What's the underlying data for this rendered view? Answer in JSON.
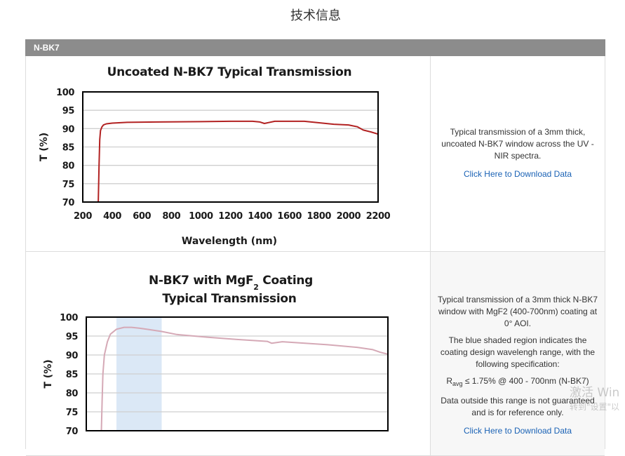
{
  "page": {
    "title": "技术信息"
  },
  "section": {
    "label": "N-BK7"
  },
  "row1": {
    "description": "Typical transmission of a 3mm thick, uncoated N-BK7 window across the UV - NIR spectra.",
    "link": "Click Here to Download Data"
  },
  "row2": {
    "desc1": "Typical transmission of a 3mm thick N-BK7 window with MgF2 (400-700nm) coating at 0° AOI.",
    "desc2": "The blue shaded region indicates the coating design wavelengh range, with the following specification:",
    "spec_prefix": "R",
    "spec_sub": "avg",
    "spec_rest": " ≤ 1.75% @ 400 - 700nm (N-BK7)",
    "desc3": "Data outside this range is not guaranteed and is for reference only.",
    "link": "Click Here to Download Data"
  },
  "watermark": {
    "line1": "激活 Win",
    "line2": "转到\"设置\"以"
  },
  "colors": {
    "line1": "#b22222",
    "line2": "#d5a9b6",
    "band": "#dbe8f6",
    "bar": "#8c8c8c",
    "link": "#1a62b5"
  },
  "chart_data": [
    {
      "type": "line",
      "title": "Uncoated N-BK7 Typical Transmission",
      "xlabel": "Wavelength (nm)",
      "ylabel": "T (%)",
      "xlim": [
        200,
        2200
      ],
      "ylim": [
        70,
        100
      ],
      "xticks": [
        200,
        400,
        600,
        800,
        1000,
        1200,
        1400,
        1600,
        1800,
        2000,
        2200
      ],
      "yticks": [
        70,
        75,
        80,
        85,
        90,
        95,
        100
      ],
      "grid": true,
      "series": [
        {
          "x": [
            305,
            310,
            315,
            320,
            330,
            340,
            360,
            400,
            500,
            700,
            1000,
            1200,
            1350,
            1400,
            1430,
            1500,
            1700,
            1800,
            1900,
            2000,
            2060,
            2100,
            2150,
            2200
          ],
          "y": [
            70,
            80,
            87,
            89.5,
            90.5,
            91,
            91.3,
            91.5,
            91.7,
            91.8,
            91.9,
            92,
            92,
            91.8,
            91.4,
            92,
            92,
            91.6,
            91.2,
            91,
            90.5,
            89.6,
            89.1,
            88.5
          ]
        }
      ]
    },
    {
      "type": "line",
      "title": "N-BK7 with MgF2 Coating Typical Transmission",
      "title_line1_a": "N-BK7 with MgF",
      "title_line1_sub": "2",
      "title_line1_b": " Coating",
      "title_line2": "Typical Transmission",
      "ylabel": "T (%)",
      "ylim": [
        70,
        100
      ],
      "yticks": [
        70,
        75,
        80,
        85,
        90,
        95,
        100
      ],
      "xlim": [
        200,
        2200
      ],
      "grid": true,
      "shaded_band": [
        400,
        700
      ],
      "series": [
        {
          "x": [
            300,
            305,
            310,
            320,
            340,
            360,
            400,
            450,
            500,
            550,
            600,
            700,
            800,
            1000,
            1200,
            1400,
            1430,
            1500,
            1800,
            2000,
            2100,
            2150,
            2200
          ],
          "y": [
            70,
            78,
            85,
            90,
            93.5,
            95.5,
            96.8,
            97.3,
            97.3,
            97.1,
            96.8,
            96.2,
            95.4,
            94.7,
            94.1,
            93.6,
            93.1,
            93.5,
            92.7,
            92,
            91.4,
            90.7,
            90.2
          ]
        }
      ]
    }
  ]
}
